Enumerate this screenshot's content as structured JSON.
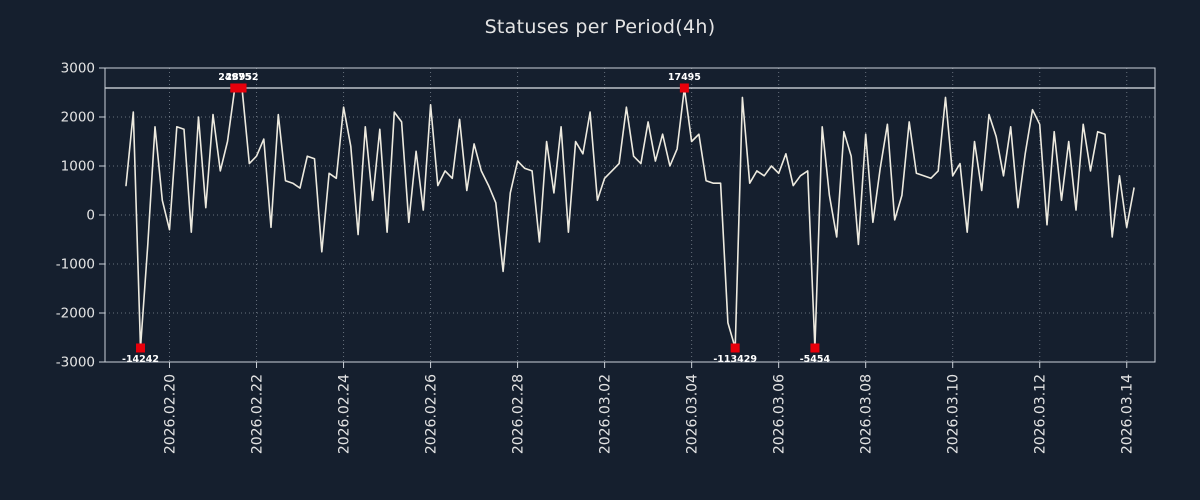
{
  "title": "Statuses per Period(4h)",
  "colors": {
    "background": "#151f2e",
    "line": "#edeadf",
    "marker": "#e8000b",
    "grid": "#c9d2dc",
    "axis": "#ccd2d9",
    "text": "#e4e4e4"
  },
  "chart_data": {
    "type": "line",
    "title": "Statuses per Period(4h)",
    "period": "4h",
    "ylim": [
      -3000,
      3000
    ],
    "yticks": [
      3000,
      2000,
      1000,
      0,
      -1000,
      -2000,
      -3000
    ],
    "xtick_labels": [
      "2026.02.20",
      "2026.02.22",
      "2026.02.24",
      "2026.02.26",
      "2026.02.28",
      "2026.03.02",
      "2026.03.04",
      "2026.03.06",
      "2026.03.08",
      "2026.03.10",
      "2026.03.12",
      "2026.03.14"
    ],
    "xticks_index": [
      6,
      18,
      30,
      42,
      54,
      66,
      78,
      90,
      102,
      114,
      126,
      138
    ],
    "grid": true,
    "clip_max": 2592,
    "clip_min": -2714,
    "values": [
      600,
      2100,
      -14242,
      -600,
      1800,
      300,
      -300,
      1800,
      1750,
      -350,
      2000,
      150,
      2050,
      900,
      1500,
      24975,
      28952,
      1050,
      1200,
      1550,
      -250,
      2050,
      700,
      650,
      550,
      1200,
      1150,
      -750,
      850,
      750,
      2200,
      1400,
      -400,
      1800,
      300,
      1750,
      -350,
      2100,
      1900,
      -150,
      1300,
      100,
      2250,
      600,
      900,
      750,
      1950,
      500,
      1450,
      900,
      600,
      250,
      -1150,
      450,
      1100,
      950,
      900,
      -550,
      1500,
      450,
      1800,
      -350,
      1500,
      1250,
      2100,
      300,
      750,
      900,
      1050,
      2200,
      1200,
      1050,
      1900,
      1100,
      1650,
      1000,
      1350,
      17495,
      1500,
      1650,
      700,
      650,
      650,
      -2200,
      -113429,
      2400,
      650,
      900,
      800,
      1000,
      850,
      1250,
      600,
      800,
      900,
      -5454,
      1800,
      400,
      -450,
      1700,
      1200,
      -600,
      1650,
      -150,
      950,
      1850,
      -100,
      400,
      1900,
      850,
      800,
      750,
      900,
      2400,
      800,
      1050,
      -350,
      1500,
      500,
      2050,
      1600,
      800,
      1800,
      150,
      1250,
      2150,
      1850,
      -200,
      1700,
      300,
      1500,
      100,
      1850,
      900,
      1700,
      1650,
      -450,
      800,
      -250,
      550
    ],
    "markers": [
      {
        "index": 2,
        "value": -14242,
        "label": "-14242",
        "label_pos": "below"
      },
      {
        "index": 15,
        "value": 24975,
        "label": "24975",
        "label_pos": "above"
      },
      {
        "index": 16,
        "value": 28952,
        "label": "28952",
        "label_pos": "above"
      },
      {
        "index": 77,
        "value": 17495,
        "label": "17495",
        "label_pos": "above"
      },
      {
        "index": 84,
        "value": -113429,
        "label": "-113429",
        "label_pos": "below"
      },
      {
        "index": 95,
        "value": -5454,
        "label": "-5454",
        "label_pos": "below"
      }
    ]
  }
}
